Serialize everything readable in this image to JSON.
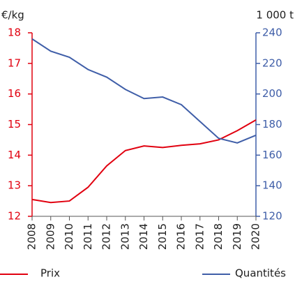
{
  "chart_data": {
    "type": "line",
    "ylabel": "€/kg",
    "y2label": "1 000 t",
    "categories": [
      "2008",
      "2009",
      "2010",
      "2011",
      "2012",
      "2013",
      "2014",
      "2015",
      "2016",
      "2017",
      "2018",
      "2019",
      "2020"
    ],
    "series": [
      {
        "name": "Prix",
        "color": "#e1000f",
        "axis": "y",
        "values": [
          12.55,
          12.45,
          12.5,
          12.95,
          13.65,
          14.15,
          14.3,
          14.25,
          14.32,
          14.37,
          14.5,
          14.8,
          15.15
        ]
      },
      {
        "name": "Quantités",
        "color": "#3f5ea8",
        "axis": "y2",
        "values": [
          236,
          228,
          224,
          216,
          211,
          203,
          197,
          198,
          193,
          182,
          171,
          168,
          173
        ]
      }
    ],
    "ylim": [
      12,
      18
    ],
    "yticks": [
      12,
      13,
      14,
      15,
      16,
      17,
      18
    ],
    "y2lim": [
      120,
      240
    ],
    "y2ticks": [
      120,
      140,
      160,
      180,
      200,
      220,
      240
    ]
  }
}
